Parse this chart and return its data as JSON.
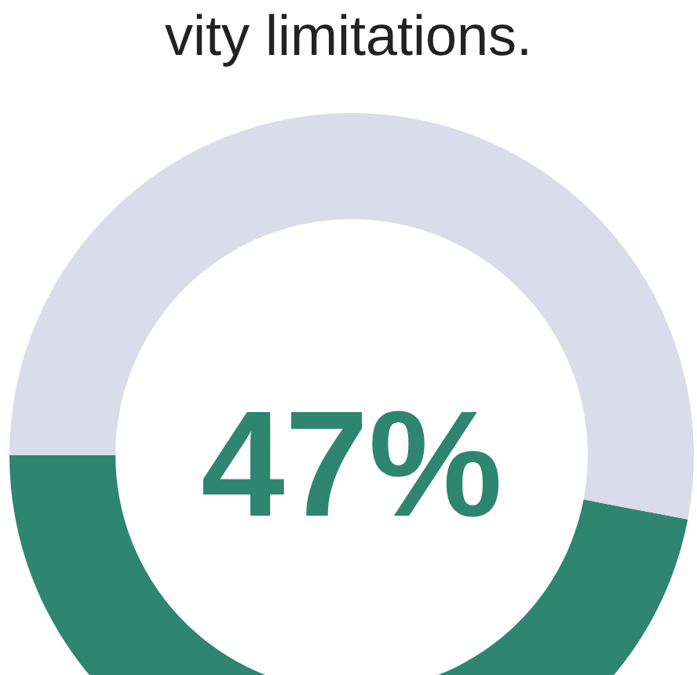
{
  "chart_data": {
    "type": "donut",
    "title": "vity limitations.",
    "categories": [
      null,
      null
    ],
    "values": [
      47,
      53
    ],
    "colors": [
      "#2e8570",
      "#dadcea"
    ],
    "value_labels": [
      "47%",
      null
    ],
    "legend": false
  }
}
